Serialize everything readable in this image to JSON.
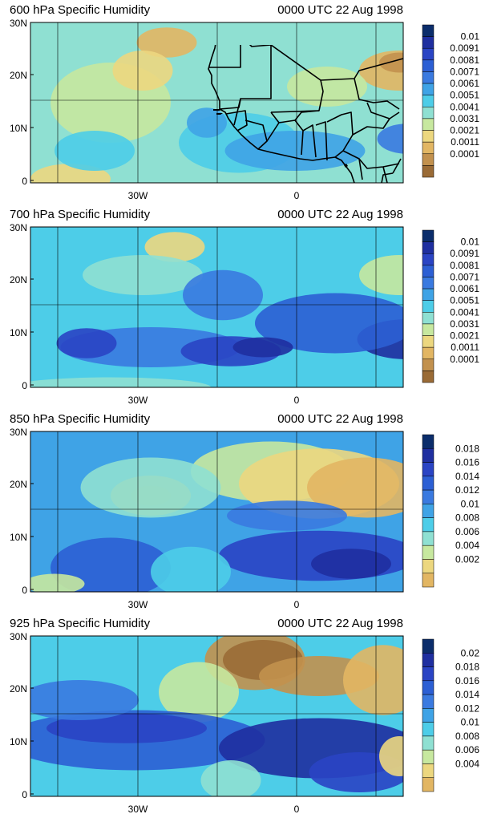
{
  "panels": [
    {
      "id": "p600",
      "title": "600 hPa Specific Humidity",
      "time": "0000 UTC 22 Aug 1998",
      "y_ticks": [
        "30N",
        "20N",
        "10N",
        "0"
      ],
      "x_ticks": [
        "30W",
        "0"
      ],
      "colorbar_labels": [
        "0.01",
        "0.0091",
        "0.0081",
        "0.0071",
        "0.0061",
        "0.0051",
        "0.0041",
        "0.0031",
        "0.0021",
        "0.0011",
        "0.0001"
      ],
      "colorbar_colors": [
        "#0b2d6b",
        "#1f2fa0",
        "#2a44c4",
        "#2c5fd4",
        "#3a7ae0",
        "#3fa3e6",
        "#4dcde8",
        "#8fe0d2",
        "#c7e89f",
        "#ecd77f",
        "#e2b663",
        "#c2914e",
        "#9a6b36"
      ]
    },
    {
      "id": "p700",
      "title": "700 hPa Specific Humidity",
      "time": "0000 UTC 22 Aug 1998",
      "y_ticks": [
        "30N",
        "20N",
        "10N",
        "0"
      ],
      "x_ticks": [
        "30W",
        "0"
      ],
      "colorbar_labels": [
        "0.01",
        "0.0091",
        "0.0081",
        "0.0071",
        "0.0061",
        "0.0051",
        "0.0041",
        "0.0031",
        "0.0021",
        "0.0011",
        "0.0001"
      ],
      "colorbar_colors": [
        "#0b2d6b",
        "#1f2fa0",
        "#2a44c4",
        "#2c5fd4",
        "#3a7ae0",
        "#3fa3e6",
        "#4dcde8",
        "#8fe0d2",
        "#c7e89f",
        "#ecd77f",
        "#e2b663",
        "#c2914e",
        "#9a6b36"
      ]
    },
    {
      "id": "p850",
      "title": "850 hPa Specific Humidity",
      "time": "0000 UTC 22 Aug 1998",
      "y_ticks": [
        "30N",
        "20N",
        "10N",
        "0"
      ],
      "x_ticks": [
        "30W",
        "0"
      ],
      "colorbar_labels": [
        "0.018",
        "0.016",
        "0.014",
        "0.012",
        "0.01",
        "0.008",
        "0.006",
        "0.004",
        "0.002"
      ],
      "colorbar_colors": [
        "#0b2d6b",
        "#1f2fa0",
        "#2a44c4",
        "#2c5fd4",
        "#3a7ae0",
        "#3fa3e6",
        "#4dcde8",
        "#8fe0d2",
        "#c7e89f",
        "#ecd77f",
        "#e2b663",
        "#c2914e",
        "#9a6b36"
      ]
    },
    {
      "id": "p925",
      "title": "925 hPa Specific Humidity",
      "time": "0000 UTC 22 Aug 1998",
      "y_ticks": [
        "30N",
        "20N",
        "10N",
        "0"
      ],
      "x_ticks": [
        "30W",
        "0"
      ],
      "colorbar_labels": [
        "0.02",
        "0.018",
        "0.016",
        "0.014",
        "0.012",
        "0.01",
        "0.008",
        "0.006",
        "0.004"
      ],
      "colorbar_colors": [
        "#0b2d6b",
        "#1f2fa0",
        "#2a44c4",
        "#2c5fd4",
        "#3a7ae0",
        "#3fa3e6",
        "#4dcde8",
        "#8fe0d2",
        "#c7e89f",
        "#ecd77f",
        "#e2b663",
        "#c2914e",
        "#9a6b36"
      ]
    }
  ]
}
